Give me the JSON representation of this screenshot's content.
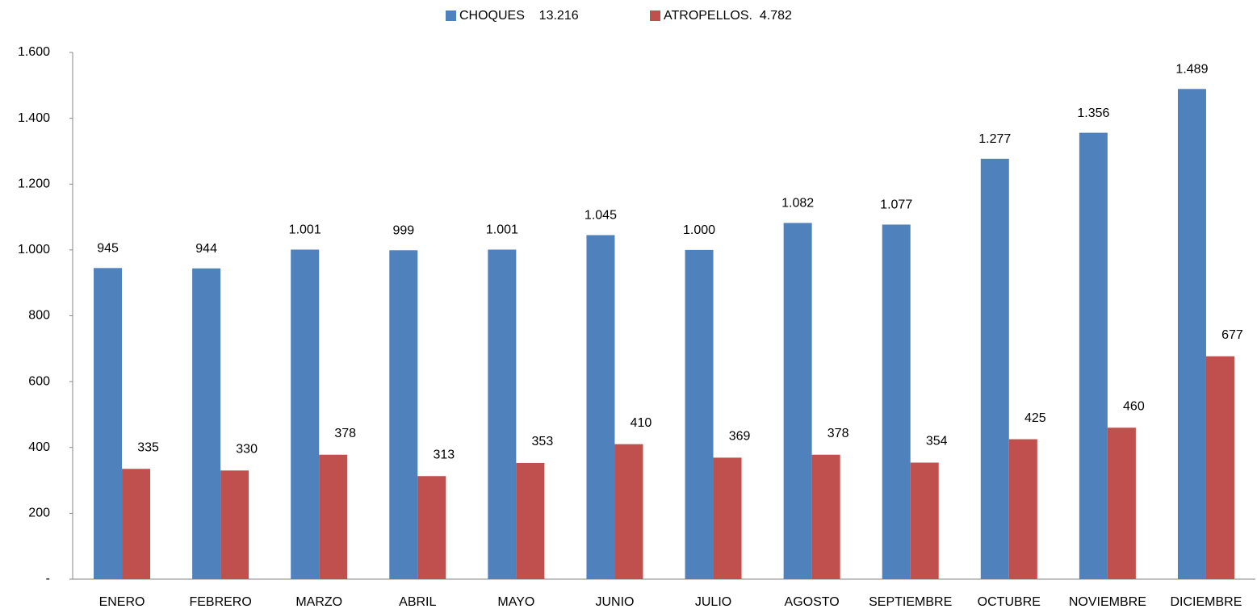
{
  "chart_data": {
    "type": "bar",
    "categories": [
      "ENERO",
      "FEBRERO",
      "MARZO",
      "ABRIL",
      "MAYO",
      "JUNIO",
      "JULIO",
      "AGOSTO",
      "SEPTIEMBRE",
      "OCTUBRE",
      "NOVIEMBRE",
      "DICIEMBRE"
    ],
    "series": [
      {
        "name": "CHOQUES    13.216",
        "color": "#4f81bd",
        "values": [
          945,
          944,
          1001,
          999,
          1001,
          1045,
          1000,
          1082,
          1077,
          1277,
          1356,
          1489
        ],
        "value_labels": [
          "945",
          "944",
          "1.001",
          "999",
          "1.001",
          "1.045",
          "1.000",
          "1.082",
          "1.077",
          "1.277",
          "1.356",
          "1.489"
        ]
      },
      {
        "name": "ATROPELLOS.  4.782",
        "color": "#c0504d",
        "values": [
          335,
          330,
          378,
          313,
          353,
          410,
          369,
          378,
          354,
          425,
          460,
          677
        ],
        "value_labels": [
          "335",
          "330",
          "378",
          "313",
          "353",
          "410",
          "369",
          "378",
          "354",
          "425",
          "460",
          "677"
        ]
      }
    ],
    "ylim": [
      0,
      1600
    ],
    "yticks": [
      {
        "value": 0,
        "label": "-"
      },
      200,
      400,
      600,
      800,
      {
        "value": 1000,
        "label": "1.000"
      },
      {
        "value": 1200,
        "label": "1.200"
      },
      {
        "value": 1400,
        "label": "1.400"
      },
      {
        "value": 1600,
        "label": "1.600"
      }
    ],
    "grid": false,
    "legend": "top"
  }
}
